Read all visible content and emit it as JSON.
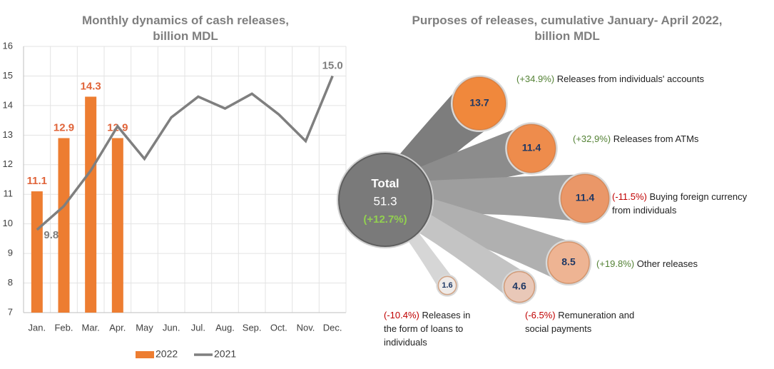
{
  "chart_data": [
    {
      "type": "bar-line",
      "title": "Monthly dynamics of cash releases, billion MDL",
      "categories": [
        "Jan.",
        "Feb.",
        "Mar.",
        "Apr.",
        "May",
        "Jun.",
        "Jul.",
        "Aug.",
        "Sep.",
        "Oct.",
        "Nov.",
        "Dec."
      ],
      "series": [
        {
          "name": "2022",
          "kind": "bar",
          "color": "#ed7d31",
          "label_color": "#e0643a",
          "values": [
            11.1,
            12.9,
            14.3,
            12.9,
            null,
            null,
            null,
            null,
            null,
            null,
            null,
            null
          ]
        },
        {
          "name": "2021",
          "kind": "line",
          "color": "#7f7f7f",
          "label_color": "#7f7f7f",
          "values": [
            9.8,
            10.6,
            11.8,
            13.3,
            12.2,
            13.6,
            14.3,
            13.9,
            14.4,
            13.7,
            12.8,
            15.0
          ],
          "value_labels": [
            "9.8",
            null,
            null,
            null,
            null,
            null,
            null,
            null,
            null,
            null,
            null,
            "15.0"
          ]
        }
      ],
      "ylim": [
        7,
        16
      ],
      "yticks": [
        7,
        8,
        9,
        10,
        11,
        12,
        13,
        14,
        15,
        16
      ],
      "grid": true,
      "legend": "bottom"
    },
    {
      "type": "bubble",
      "title": "Purposes of releases, cumulative January- April 2022, billion MDL",
      "total": {
        "label": "Total",
        "value": 51.3,
        "change": "(+12.7%)",
        "change_color": "#92d050",
        "color": "#7a7a7a"
      },
      "items": [
        {
          "value": 13.7,
          "change": "(+34.9%)",
          "label": "Releases from individuals' accounts",
          "color": "#f0883c",
          "change_color": "#548235"
        },
        {
          "value": 11.4,
          "change": "(+32,9%)",
          "label": "Releases from ATMs",
          "color": "#ee8c4c",
          "change_color": "#548235"
        },
        {
          "value": 11.4,
          "change": "(-11.5%)",
          "label": "Buying foreign currency from individuals",
          "color": "#ea9768",
          "change_color": "#c00000"
        },
        {
          "value": 8.5,
          "change": "(+19.8%)",
          "label": "Other releases",
          "color": "#eeb493",
          "change_color": "#548235"
        },
        {
          "value": 4.6,
          "change": "(-6.5%)",
          "label": "Remuneration and social payments",
          "color": "#e9c8b8",
          "change_color": "#c00000"
        },
        {
          "value": 1.6,
          "change": "(-10.4%)",
          "label": "Releases in the form of loans to individuals",
          "color": "#efebe9",
          "change_color": "#c00000"
        }
      ]
    }
  ]
}
